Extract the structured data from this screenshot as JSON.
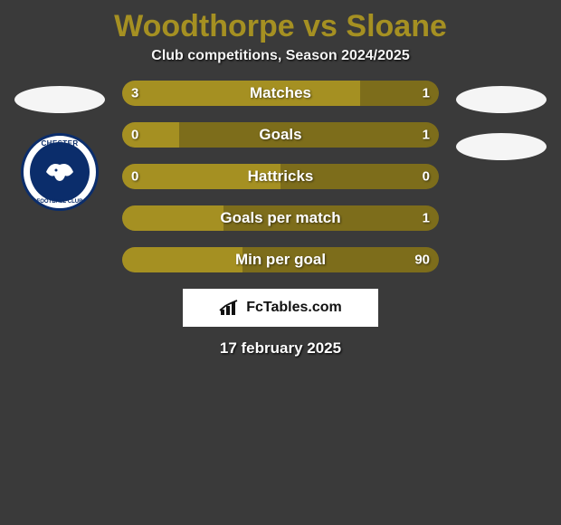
{
  "title": {
    "text": "Woodthorpe vs Sloane",
    "color": "#a59022"
  },
  "subtitle": "Club competitions, Season 2024/2025",
  "colors": {
    "left_segment": "#a59022",
    "right_segment": "#7d6d1b",
    "ellipse": "#f5f5f5"
  },
  "left_badges": {
    "club_top": "CHESTER",
    "club_bottom": "FOOTBALL CLUB",
    "club_border": "#0b2d6b"
  },
  "bars": [
    {
      "label": "Matches",
      "left_val": "3",
      "right_val": "1",
      "left_pct": 75
    },
    {
      "label": "Goals",
      "left_val": "0",
      "right_val": "1",
      "left_pct": 18
    },
    {
      "label": "Hattricks",
      "left_val": "0",
      "right_val": "0",
      "left_pct": 50
    },
    {
      "label": "Goals per match",
      "left_val": "",
      "right_val": "1",
      "left_pct": 32
    },
    {
      "label": "Min per goal",
      "left_val": "",
      "right_val": "90",
      "left_pct": 38
    }
  ],
  "brand": "FcTables.com",
  "date": "17 february 2025"
}
